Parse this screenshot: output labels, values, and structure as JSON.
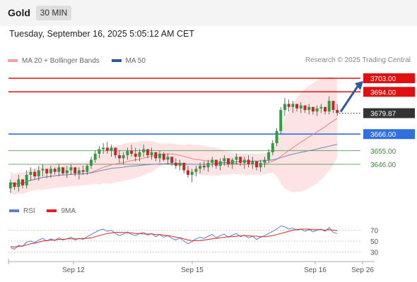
{
  "header": {
    "symbol": "Gold",
    "timeframe": "30 MIN",
    "datetime": "Tuesday, September 16, 2025 5:05:12 AM CET",
    "copyright": "Research © 2025 Trading Central"
  },
  "legend": {
    "ma20_label": "MA 20 + Bollinger Bands",
    "ma20_color": "#f08080",
    "ma50_label": "MA 50",
    "ma50_color": "#2c5aa0",
    "rsi_label": "RSI",
    "rsi_color": "#5b7fd6",
    "ma9_label": "9MA",
    "ma9_color": "#e02020"
  },
  "chart_data": [
    {
      "type": "candlestick",
      "x_tick_labels": [
        "Sep 12",
        "Sep 15",
        "Sep 16",
        "Sep 26"
      ],
      "ylim": [
        3625,
        3710
      ],
      "last_price": 3679.87,
      "levels": [
        {
          "label": "3703.00",
          "value": 3703.0,
          "kind": "resistance",
          "color": "#e01010"
        },
        {
          "label": "3694.00",
          "value": 3694.0,
          "kind": "resistance",
          "color": "#e01010"
        },
        {
          "label": "3666.00",
          "value": 3666.0,
          "kind": "pivot",
          "color": "#2f6fe0"
        },
        {
          "label": "3655.00",
          "value": 3655.0,
          "kind": "support",
          "color": "#3a8a3a"
        },
        {
          "label": "3646.00",
          "value": 3646.0,
          "kind": "support",
          "color": "#3a8a3a"
        }
      ],
      "last_price_label": "3679.87",
      "last_price_color": "#333333",
      "forecast_arrow": {
        "from": 3679.87,
        "to": 3703.0,
        "color": "#2c5aa0"
      },
      "series": [
        {
          "name": "Gold",
          "ohlc_approx": [
            [
              3630,
              3636,
              3627,
              3634
            ],
            [
              3634,
              3633,
              3629,
              3631
            ],
            [
              3631,
              3639,
              3628,
              3636
            ],
            [
              3636,
              3634,
              3630,
              3632
            ],
            [
              3632,
              3642,
              3630,
              3639
            ],
            [
              3639,
              3644,
              3635,
              3641
            ],
            [
              3641,
              3643,
              3636,
              3638
            ],
            [
              3638,
              3645,
              3635,
              3642
            ],
            [
              3642,
              3646,
              3638,
              3643
            ],
            [
              3643,
              3642,
              3637,
              3640
            ],
            [
              3640,
              3645,
              3637,
              3643
            ],
            [
              3643,
              3644,
              3639,
              3641
            ],
            [
              3641,
              3646,
              3638,
              3644
            ],
            [
              3644,
              3643,
              3639,
              3640
            ],
            [
              3640,
              3645,
              3637,
              3642
            ],
            [
              3642,
              3646,
              3639,
              3644
            ],
            [
              3644,
              3643,
              3638,
              3640
            ],
            [
              3640,
              3644,
              3636,
              3642
            ],
            [
              3642,
              3645,
              3639,
              3641
            ],
            [
              3641,
              3646,
              3639,
              3645
            ],
            [
              3645,
              3651,
              3643,
              3649
            ],
            [
              3649,
              3655,
              3647,
              3653
            ],
            [
              3653,
              3658,
              3650,
              3656
            ],
            [
              3656,
              3660,
              3653,
              3657
            ],
            [
              3657,
              3661,
              3653,
              3655
            ],
            [
              3655,
              3659,
              3651,
              3657
            ],
            [
              3657,
              3656,
              3650,
              3652
            ],
            [
              3652,
              3655,
              3647,
              3650
            ],
            [
              3650,
              3654,
              3646,
              3652
            ],
            [
              3652,
              3657,
              3649,
              3655
            ],
            [
              3655,
              3659,
              3651,
              3653
            ],
            [
              3653,
              3657,
              3648,
              3651
            ],
            [
              3651,
              3656,
              3648,
              3654
            ],
            [
              3654,
              3659,
              3651,
              3656
            ],
            [
              3656,
              3655,
              3650,
              3652
            ],
            [
              3652,
              3657,
              3649,
              3654
            ],
            [
              3654,
              3653,
              3648,
              3650
            ],
            [
              3650,
              3655,
              3647,
              3653
            ],
            [
              3653,
              3654,
              3648,
              3649
            ],
            [
              3649,
              3653,
              3646,
              3651
            ],
            [
              3651,
              3650,
              3645,
              3647
            ],
            [
              3647,
              3650,
              3643,
              3645
            ],
            [
              3645,
              3649,
              3642,
              3647
            ],
            [
              3647,
              3646,
              3640,
              3642
            ],
            [
              3642,
              3645,
              3637,
              3639
            ],
            [
              3639,
              3643,
              3634,
              3641
            ],
            [
              3641,
              3645,
              3638,
              3643
            ],
            [
              3643,
              3647,
              3640,
              3645
            ],
            [
              3645,
              3648,
              3642,
              3644
            ],
            [
              3644,
              3649,
              3641,
              3647
            ],
            [
              3647,
              3651,
              3644,
              3649
            ],
            [
              3649,
              3648,
              3643,
              3645
            ],
            [
              3645,
              3650,
              3642,
              3648
            ],
            [
              3648,
              3652,
              3645,
              3650
            ],
            [
              3650,
              3649,
              3644,
              3646
            ],
            [
              3646,
              3650,
              3643,
              3649
            ],
            [
              3649,
              3653,
              3646,
              3651
            ],
            [
              3651,
              3650,
              3645,
              3647
            ],
            [
              3647,
              3651,
              3643,
              3649
            ],
            [
              3649,
              3652,
              3644,
              3646
            ],
            [
              3646,
              3651,
              3643,
              3648
            ],
            [
              3648,
              3647,
              3642,
              3644
            ],
            [
              3644,
              3649,
              3641,
              3647
            ],
            [
              3647,
              3651,
              3644,
              3649
            ],
            [
              3649,
              3656,
              3647,
              3654
            ],
            [
              3654,
              3662,
              3652,
              3660
            ],
            [
              3660,
              3670,
              3658,
              3668
            ],
            [
              3668,
              3684,
              3666,
              3682
            ],
            [
              3682,
              3690,
              3678,
              3686
            ],
            [
              3686,
              3689,
              3681,
              3684
            ],
            [
              3684,
              3688,
              3680,
              3686
            ],
            [
              3686,
              3685,
              3681,
              3683
            ],
            [
              3683,
              3687,
              3680,
              3685
            ],
            [
              3685,
              3684,
              3680,
              3682
            ],
            [
              3682,
              3686,
              3679,
              3684
            ],
            [
              3684,
              3683,
              3679,
              3681
            ],
            [
              3681,
              3685,
              3678,
              3683
            ],
            [
              3683,
              3686,
              3680,
              3684
            ],
            [
              3684,
              3683,
              3679,
              3681
            ],
            [
              3681,
              3691,
              3679,
              3688
            ],
            [
              3688,
              3687,
              3680,
              3682
            ],
            [
              3682,
              3686,
              3678,
              3680
            ]
          ]
        }
      ]
    },
    {
      "type": "line",
      "ylim": [
        20,
        85
      ],
      "y_tick_labels": [
        "70",
        "50",
        "30"
      ],
      "y_ticks": [
        70,
        50,
        30
      ],
      "series": [
        {
          "name": "RSI",
          "values": [
            38,
            35,
            42,
            40,
            48,
            50,
            47,
            52,
            55,
            50,
            54,
            51,
            56,
            52,
            54,
            57,
            52,
            55,
            53,
            58,
            62,
            66,
            70,
            72,
            68,
            70,
            64,
            60,
            63,
            67,
            62,
            60,
            64,
            66,
            61,
            64,
            58,
            62,
            57,
            60,
            55,
            52,
            56,
            50,
            45,
            49,
            54,
            57,
            55,
            59,
            62,
            56,
            60,
            63,
            57,
            61,
            64,
            58,
            61,
            56,
            59,
            53,
            57,
            60,
            64,
            68,
            72,
            78,
            76,
            72,
            74,
            70,
            72,
            68,
            71,
            67,
            70,
            72,
            68,
            75,
            66,
            64
          ]
        },
        {
          "name": "9MA",
          "values": [
            40,
            39,
            40,
            41,
            43,
            45,
            46,
            48,
            50,
            51,
            52,
            52,
            53,
            53,
            54,
            54,
            54,
            54,
            55,
            55,
            56,
            58,
            60,
            62,
            64,
            65,
            66,
            66,
            66,
            65,
            65,
            64,
            64,
            63,
            63,
            63,
            62,
            62,
            61,
            60,
            59,
            57,
            56,
            54,
            52,
            51,
            51,
            51,
            52,
            53,
            54,
            55,
            56,
            57,
            58,
            58,
            59,
            60,
            60,
            60,
            59,
            59,
            58,
            58,
            59,
            60,
            62,
            64,
            66,
            68,
            70,
            71,
            72,
            72,
            72,
            71,
            71,
            71,
            70,
            71,
            70,
            69
          ]
        }
      ]
    }
  ]
}
